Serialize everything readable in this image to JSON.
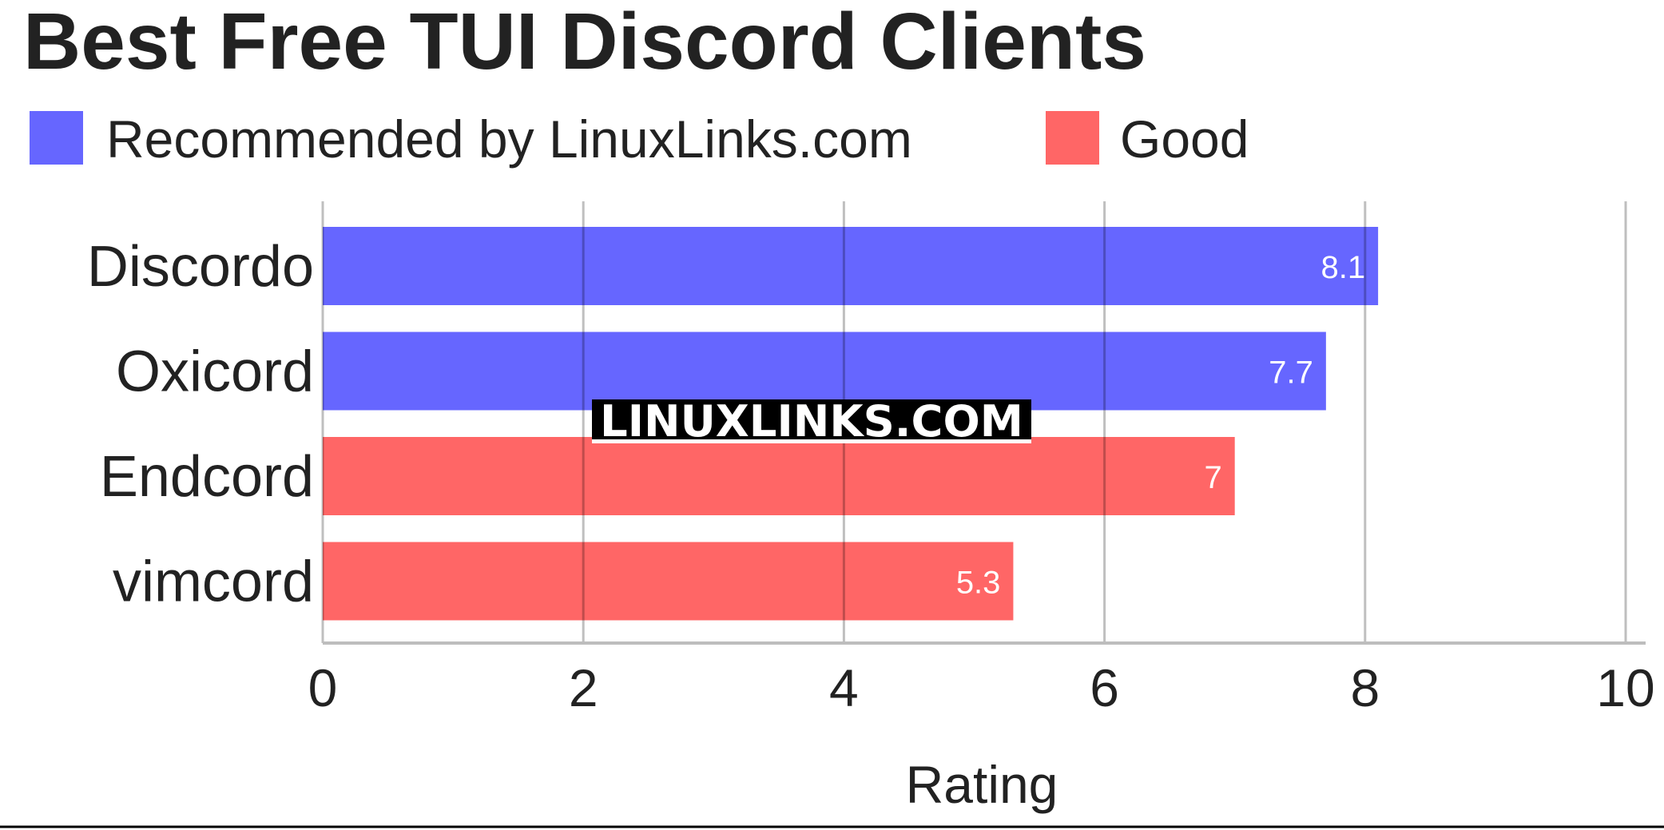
{
  "chart_data": {
    "type": "bar",
    "orientation": "horizontal",
    "title": "Best Free TUI Discord Clients",
    "xlabel": "Rating",
    "ylabel": "",
    "xlim": [
      0,
      10
    ],
    "xticks": [
      "0",
      "2",
      "4",
      "6",
      "8",
      "10"
    ],
    "grid": true,
    "legend_position": "top-left",
    "legend": [
      {
        "name": "Recommended by LinuxLinks.com",
        "color": "#6666ff"
      },
      {
        "name": "Good",
        "color": "#ff6666"
      }
    ],
    "categories": [
      "Discordo",
      "Oxicord",
      "Endcord",
      "vimcord"
    ],
    "values": [
      8.1,
      7.7,
      7,
      5.3
    ],
    "value_labels": [
      "8.1",
      "7.7",
      "7",
      "5.3"
    ],
    "bar_groups": [
      "Recommended by LinuxLinks.com",
      "Recommended by LinuxLinks.com",
      "Good",
      "Good"
    ]
  },
  "watermark": "LINUXLINKS.COM"
}
